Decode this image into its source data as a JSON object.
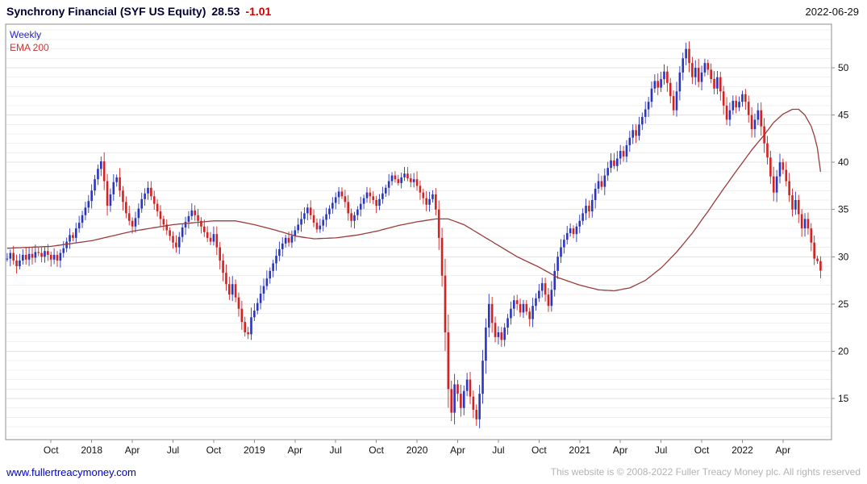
{
  "header": {
    "title": "Synchrony Financial (SYF US Equity)",
    "last_price": "28.53",
    "change": "-1.01",
    "date": "2022-06-29"
  },
  "legend": {
    "timeframe": "Weekly",
    "overlay": "EMA 200"
  },
  "footer": {
    "link": "www.fullertreacymoney.com",
    "copyright": "This website is © 2008-2022 Fuller Treacy Money plc. All rights reserved"
  },
  "colors": {
    "up_candle": "#2a35c0",
    "down_candle": "#d22222",
    "ema_line": "#9a3b3b",
    "grid_minor": "#efefef",
    "grid_major": "#e3e3e3",
    "border": "#8c8c8c",
    "axis_text": "#111111",
    "title_text": "#000033",
    "change_text": "#cc0000",
    "legend_weekly": "#2222cc",
    "legend_ema": "#cc3333",
    "link_text": "#0000cc",
    "copyright_text": "#b3b3b3"
  },
  "chart_data": {
    "type": "candlestick",
    "timeframe": "weekly",
    "instrument": "Synchrony Financial",
    "ticker": "SYF US Equity",
    "last_close": 28.53,
    "change": -1.01,
    "as_of_date": "2022-06-29",
    "ylim": [
      10.6,
      54.6
    ],
    "yticks": [
      15,
      20,
      25,
      30,
      35,
      40,
      45,
      50
    ],
    "grid": "horizontal-only",
    "legend_position": "top-left-inside",
    "right_padding_weeks": 3,
    "x_tick_labels": [
      {
        "label": "Oct",
        "week": 14
      },
      {
        "label": "2018",
        "week": 27
      },
      {
        "label": "Apr",
        "week": 40
      },
      {
        "label": "Jul",
        "week": 53
      },
      {
        "label": "Oct",
        "week": 66
      },
      {
        "label": "2019",
        "week": 79
      },
      {
        "label": "Apr",
        "week": 92
      },
      {
        "label": "Jul",
        "week": 105
      },
      {
        "label": "Oct",
        "week": 118
      },
      {
        "label": "2020",
        "week": 131
      },
      {
        "label": "Apr",
        "week": 144
      },
      {
        "label": "Jul",
        "week": 157
      },
      {
        "label": "Oct",
        "week": 170
      },
      {
        "label": "2021",
        "week": 183
      },
      {
        "label": "Apr",
        "week": 196
      },
      {
        "label": "Jul",
        "week": 209
      },
      {
        "label": "Oct",
        "week": 222
      },
      {
        "label": "2022",
        "week": 235
      },
      {
        "label": "Apr",
        "week": 248
      }
    ],
    "closes": [
      29.8,
      30.4,
      29.6,
      29.0,
      29.6,
      30.2,
      29.7,
      30.3,
      29.9,
      30.5,
      30.4,
      30.0,
      30.6,
      30.2,
      29.7,
      30.2,
      29.6,
      30.4,
      30.9,
      31.6,
      32.3,
      32.0,
      33.0,
      33.6,
      34.4,
      35.2,
      35.9,
      37.0,
      38.2,
      39.3,
      40.1,
      38.0,
      35.4,
      36.6,
      37.9,
      38.4,
      37.0,
      35.8,
      34.6,
      33.8,
      33.2,
      34.1,
      35.1,
      36.1,
      36.7,
      37.3,
      36.4,
      35.6,
      34.8,
      34.0,
      33.4,
      32.8,
      32.2,
      31.5,
      31.0,
      32.1,
      33.1,
      33.7,
      34.3,
      34.9,
      34.4,
      33.8,
      33.2,
      32.6,
      32.0,
      31.6,
      32.4,
      31.0,
      29.6,
      28.3,
      27.1,
      26.0,
      27.1,
      25.7,
      24.5,
      23.1,
      22.0,
      21.8,
      23.6,
      24.3,
      25.1,
      26.1,
      26.9,
      27.7,
      28.5,
      29.3,
      30.1,
      30.8,
      31.4,
      32.0,
      31.5,
      32.2,
      32.8,
      33.4,
      34.0,
      34.6,
      35.2,
      34.4,
      33.6,
      32.9,
      33.3,
      33.9,
      34.5,
      35.1,
      35.7,
      36.3,
      36.9,
      36.4,
      35.8,
      34.6,
      33.8,
      34.4,
      35.0,
      35.6,
      36.2,
      36.8,
      36.4,
      36.0,
      35.4,
      36.1,
      36.7,
      37.3,
      38.0,
      38.6,
      38.2,
      37.8,
      38.4,
      38.8,
      38.3,
      37.9,
      38.2,
      37.5,
      36.8,
      36.2,
      35.5,
      36.1,
      36.6,
      35.0,
      32.0,
      28.0,
      22.0,
      16.0,
      13.5,
      16.5,
      15.5,
      14.0,
      15.8,
      17.0,
      15.2,
      13.8,
      12.8,
      15.5,
      19.0,
      22.5,
      25.0,
      23.0,
      21.5,
      22.0,
      21.2,
      22.5,
      23.5,
      24.5,
      25.4,
      25.0,
      24.1,
      25.0,
      24.2,
      23.4,
      24.8,
      25.6,
      26.4,
      27.2,
      26.0,
      24.8,
      26.5,
      28.5,
      30.0,
      31.0,
      31.8,
      32.5,
      33.0,
      32.4,
      33.2,
      33.8,
      34.6,
      35.4,
      34.8,
      36.0,
      37.2,
      38.0,
      37.4,
      38.6,
      39.4,
      40.2,
      39.6,
      40.4,
      41.2,
      40.6,
      41.8,
      42.6,
      43.4,
      42.8,
      44.0,
      44.8,
      45.6,
      46.4,
      47.8,
      48.6,
      47.9,
      48.8,
      49.6,
      48.4,
      47.0,
      45.5,
      47.5,
      49.5,
      51.0,
      52.0,
      50.5,
      49.0,
      50.0,
      48.5,
      49.5,
      50.5,
      49.8,
      48.8,
      47.8,
      49.0,
      47.5,
      46.0,
      44.5,
      45.5,
      46.5,
      45.8,
      46.4,
      47.2,
      46.4,
      45.0,
      43.5,
      44.5,
      45.5,
      43.8,
      42.0,
      40.5,
      38.5,
      36.8,
      38.5,
      40.0,
      39.2,
      38.0,
      36.5,
      35.0,
      36.0,
      34.5,
      33.0,
      34.0,
      33.0,
      31.5,
      29.8,
      29.54,
      28.53
    ],
    "ema200_anchors": [
      [
        0,
        30.9
      ],
      [
        14,
        31.1
      ],
      [
        27,
        31.7
      ],
      [
        40,
        32.7
      ],
      [
        53,
        33.4
      ],
      [
        66,
        33.8
      ],
      [
        73,
        33.8
      ],
      [
        79,
        33.4
      ],
      [
        86,
        32.8
      ],
      [
        92,
        32.2
      ],
      [
        98,
        31.9
      ],
      [
        105,
        32.0
      ],
      [
        112,
        32.3
      ],
      [
        118,
        32.7
      ],
      [
        125,
        33.3
      ],
      [
        131,
        33.7
      ],
      [
        137,
        34.0
      ],
      [
        141,
        34.0
      ],
      [
        146,
        33.4
      ],
      [
        151,
        32.4
      ],
      [
        157,
        31.2
      ],
      [
        163,
        30.0
      ],
      [
        170,
        28.9
      ],
      [
        176,
        27.8
      ],
      [
        183,
        27.0
      ],
      [
        189,
        26.5
      ],
      [
        194,
        26.4
      ],
      [
        199,
        26.7
      ],
      [
        204,
        27.5
      ],
      [
        209,
        28.8
      ],
      [
        214,
        30.5
      ],
      [
        219,
        32.5
      ],
      [
        224,
        34.8
      ],
      [
        229,
        37.2
      ],
      [
        234,
        39.5
      ],
      [
        238,
        41.3
      ],
      [
        242,
        42.9
      ],
      [
        245,
        44.2
      ],
      [
        248,
        45.1
      ],
      [
        251,
        45.6
      ],
      [
        253,
        45.6
      ],
      [
        255,
        45.0
      ],
      [
        257,
        43.8
      ],
      [
        258,
        42.8
      ],
      [
        259,
        41.5
      ],
      [
        260,
        39.0
      ]
    ]
  }
}
